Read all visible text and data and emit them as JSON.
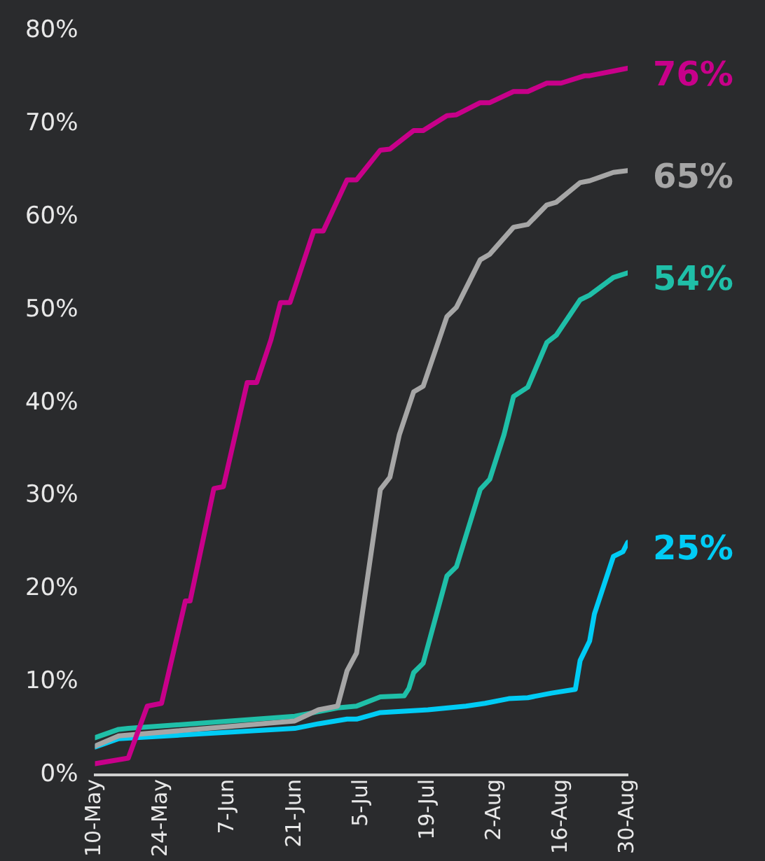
{
  "chart_data": {
    "type": "line",
    "xlim": [
      "--05-10",
      "--08-30"
    ],
    "xticks": [
      {
        "value": "--05-10",
        "label": "10-May"
      },
      {
        "value": "--05-24",
        "label": "24-May"
      },
      {
        "value": "--06-07",
        "label": "7-Jun"
      },
      {
        "value": "--06-21",
        "label": "21-Jun"
      },
      {
        "value": "--07-05",
        "label": "5-Jul"
      },
      {
        "value": "--07-19",
        "label": "19-Jul"
      },
      {
        "value": "--08-02",
        "label": "2-Aug"
      },
      {
        "value": "--08-16",
        "label": "16-Aug"
      },
      {
        "value": "--08-30",
        "label": "30-Aug"
      }
    ],
    "ylim": [
      0,
      80
    ],
    "yticks": [
      {
        "value": 0,
        "label": "0%"
      },
      {
        "value": 10,
        "label": "10%"
      },
      {
        "value": 20,
        "label": "20%"
      },
      {
        "value": 30,
        "label": "30%"
      },
      {
        "value": 40,
        "label": "40%"
      },
      {
        "value": 50,
        "label": "50%"
      },
      {
        "value": 60,
        "label": "60%"
      },
      {
        "value": 70,
        "label": "70%"
      },
      {
        "value": 80,
        "label": "80%"
      }
    ],
    "grid": false,
    "legend": false,
    "marker": "none",
    "line_style": "solid",
    "series": [
      {
        "color": "#c8008a",
        "x": [
          "--05-10",
          "--05-17",
          "--05-21",
          "--05-24",
          "--05-29",
          "--05-30",
          "--06-04",
          "--06-06",
          "--06-11",
          "--06-13",
          "--06-16",
          "--06-18",
          "--06-20",
          "--06-25",
          "--06-27",
          "--07-02",
          "--07-04",
          "--07-09",
          "--07-11",
          "--07-16",
          "--07-18",
          "--07-23",
          "--07-25",
          "--07-30",
          "--08-01",
          "--08-06",
          "--08-09",
          "--08-13",
          "--08-16",
          "--08-21",
          "--08-22",
          "--08-27",
          "--08-30"
        ],
        "values": [
          1.2,
          1.8,
          7.4,
          7.7,
          18.7,
          18.7,
          30.8,
          31,
          42.2,
          42.2,
          46.8,
          50.8,
          50.8,
          58.5,
          58.5,
          64,
          64,
          67.2,
          67.3,
          69.3,
          69.3,
          70.9,
          71,
          72.3,
          72.3,
          73.5,
          73.5,
          74.4,
          74.4,
          75.2,
          75.2,
          75.7,
          76
        ],
        "value_labels": [
          null,
          null,
          null,
          null,
          null,
          null,
          null,
          null,
          null,
          null,
          null,
          null,
          null,
          null,
          null,
          null,
          null,
          null,
          null,
          null,
          null,
          null,
          null,
          null,
          null,
          null,
          null,
          null,
          null,
          null,
          null,
          null,
          "76%"
        ]
      },
      {
        "color": "#a6a6a6",
        "x": [
          "--05-10",
          "--05-15",
          "--06-21",
          "--06-26",
          "--06-30",
          "--07-02",
          "--07-04",
          "--07-09",
          "--07-11",
          "--07-13",
          "--07-16",
          "--07-18",
          "--07-23",
          "--07-25",
          "--07-30",
          "--08-01",
          "--08-06",
          "--08-09",
          "--08-13",
          "--08-15",
          "--08-20",
          "--08-22",
          "--08-27",
          "--08-30"
        ],
        "values": [
          3.1,
          4.2,
          5.8,
          7,
          7.4,
          11.2,
          13.1,
          30.7,
          32,
          36.6,
          41.2,
          41.8,
          49.3,
          50.3,
          55.4,
          56,
          58.9,
          59.2,
          61.3,
          61.6,
          63.7,
          63.9,
          64.8,
          65
        ],
        "value_labels": [
          null,
          null,
          null,
          null,
          null,
          null,
          null,
          null,
          null,
          null,
          null,
          null,
          null,
          null,
          null,
          null,
          null,
          null,
          null,
          null,
          null,
          null,
          null,
          "65%"
        ]
      },
      {
        "color": "#1fbfa8",
        "x": [
          "--05-10",
          "--05-15",
          "--05-17",
          "--06-21",
          "--06-26",
          "--06-30",
          "--07-04",
          "--07-09",
          "--07-14",
          "--07-15",
          "--07-16",
          "--07-18",
          "--07-23",
          "--07-25",
          "--07-30",
          "--08-01",
          "--08-04",
          "--08-06",
          "--08-09",
          "--08-13",
          "--08-15",
          "--08-20",
          "--08-22",
          "--08-27",
          "--08-30"
        ],
        "values": [
          4,
          4.9,
          5,
          6.3,
          6.8,
          7.2,
          7.4,
          8.4,
          8.5,
          9.3,
          11,
          12,
          21.4,
          22.4,
          30.7,
          31.8,
          36.6,
          40.7,
          41.7,
          46.5,
          47.3,
          51.1,
          51.6,
          53.5,
          54
        ],
        "value_labels": [
          null,
          null,
          null,
          null,
          null,
          null,
          null,
          null,
          null,
          null,
          null,
          null,
          null,
          null,
          null,
          null,
          null,
          null,
          null,
          null,
          null,
          null,
          null,
          null,
          "54%"
        ]
      },
      {
        "color": "#00ccf5",
        "x": [
          "--05-10",
          "--05-15",
          "--06-21",
          "--06-26",
          "--07-02",
          "--07-04",
          "--07-09",
          "--07-19",
          "--07-27",
          "--07-31",
          "--08-05",
          "--08-09",
          "--08-14",
          "--08-19",
          "--08-20",
          "--08-22",
          "--08-23",
          "--08-27",
          "--08-29",
          "--08-30"
        ],
        "values": [
          3,
          3.9,
          5,
          5.5,
          6,
          6,
          6.7,
          7,
          7.4,
          7.7,
          8.2,
          8.3,
          8.8,
          9.2,
          12.3,
          14.4,
          17.3,
          23.5,
          24,
          25
        ],
        "value_labels": [
          null,
          null,
          null,
          null,
          null,
          null,
          null,
          null,
          null,
          null,
          null,
          null,
          null,
          null,
          null,
          null,
          null,
          null,
          null,
          "25%"
        ]
      }
    ]
  }
}
